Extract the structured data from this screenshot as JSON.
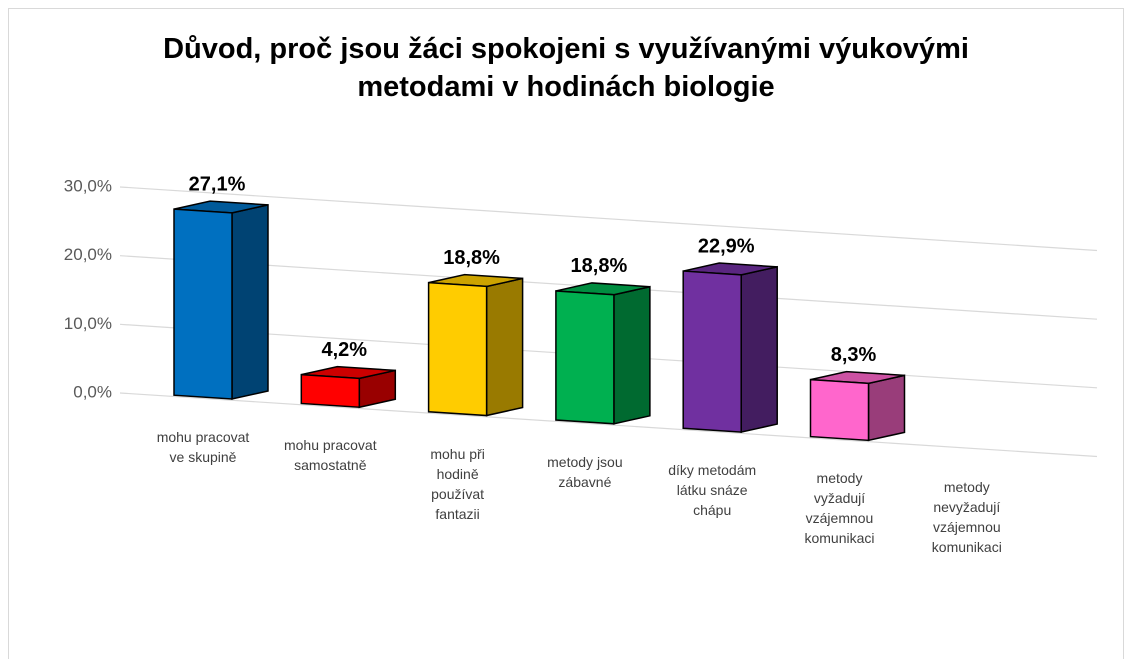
{
  "chart_data": {
    "type": "bar3d",
    "title": "Důvod, proč jsou žáci spokojeni s využívanými výukovými metodami v hodinách biologie",
    "categories": [
      "mohu pracovat ve skupině",
      "mohu pracovat samostatně",
      "mohu při hodině používat fantazii",
      "metody jsou zábavné",
      "díky metodám látku snáze chápu",
      "metody vyžadují vzájemnou komunikaci",
      "metody nevyžadují vzájemnou komunikaci"
    ],
    "values": [
      27.1,
      4.2,
      18.8,
      18.8,
      22.9,
      8.3,
      null
    ],
    "value_labels": [
      "27,1%",
      "4,2%",
      "18,8%",
      "18,8%",
      "22,9%",
      "8,3%",
      null
    ],
    "colors": [
      "#0070c0",
      "#ff0000",
      "#ffcc00",
      "#00b050",
      "#7030a0",
      "#ff66cc",
      null
    ],
    "ylim": [
      0,
      30
    ],
    "yticks": [
      {
        "value": 0,
        "label": "0,0%"
      },
      {
        "value": 10,
        "label": "10,0%"
      },
      {
        "value": 20,
        "label": "20,0%"
      },
      {
        "value": 30,
        "label": "30,0%"
      }
    ],
    "grid": true
  }
}
